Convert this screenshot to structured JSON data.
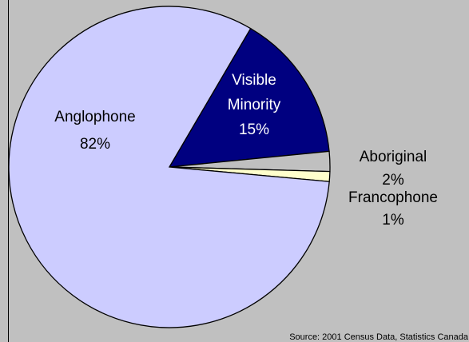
{
  "chart_data": {
    "type": "pie",
    "slices": [
      {
        "line1": "Visible",
        "line2": "Minority",
        "value": "15%",
        "pct": 15,
        "color": "#000080",
        "text_color": "#ffffff"
      },
      {
        "line1": "Aboriginal",
        "line2": "",
        "value": "2%",
        "pct": 2,
        "color": "#c0c0c0",
        "text_color": "#000000"
      },
      {
        "line1": "Francophone",
        "line2": "",
        "value": "1%",
        "pct": 1,
        "color": "#ffffcc",
        "text_color": "#000000"
      },
      {
        "line1": "Anglophone",
        "line2": "",
        "value": "82%",
        "pct": 82,
        "color": "#ccccff",
        "text_color": "#000000"
      }
    ],
    "source": "Source: 2001 Census  Data, Statistics Canada"
  }
}
